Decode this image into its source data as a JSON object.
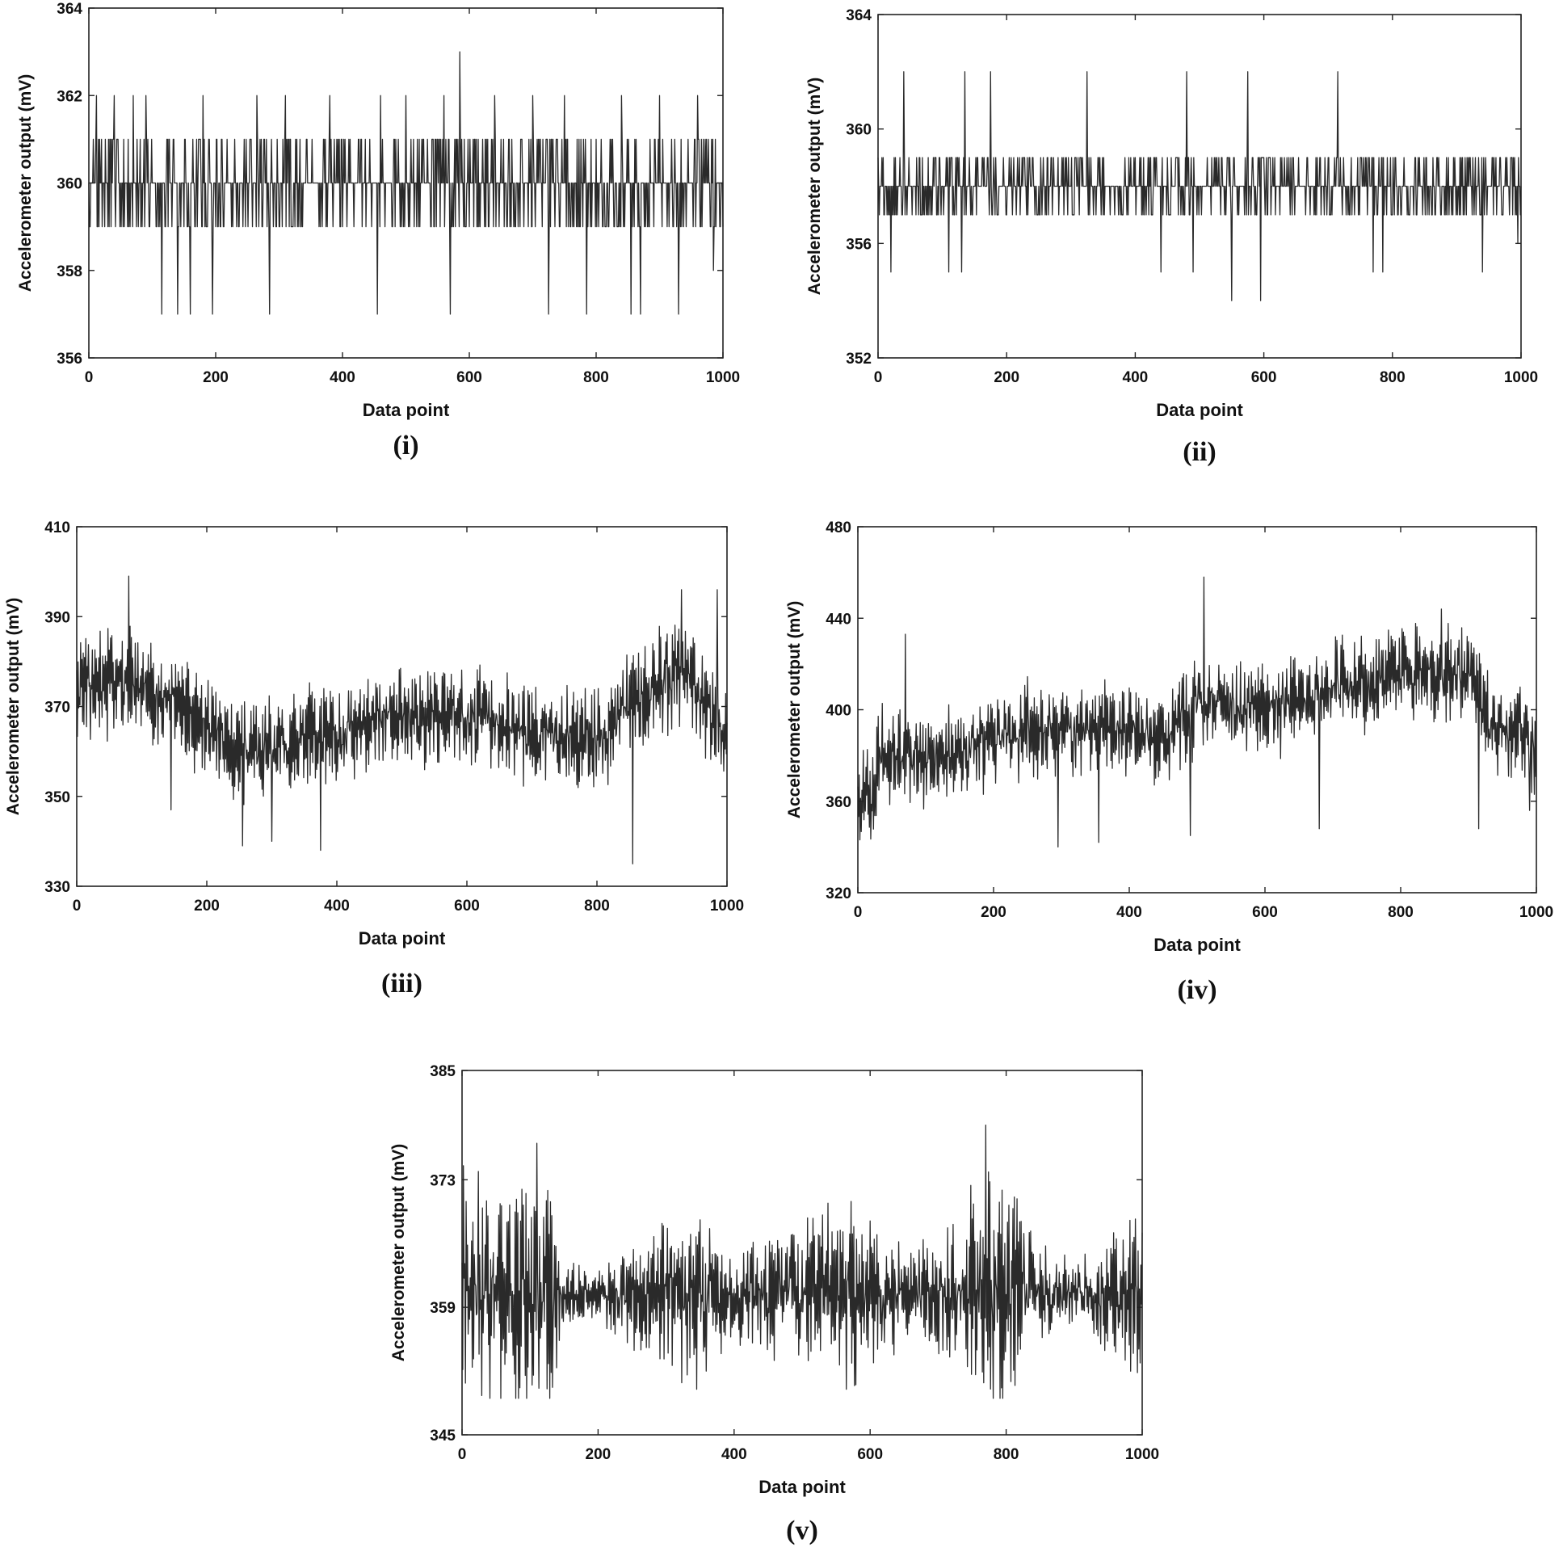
{
  "chart_data": [
    {
      "type": "line",
      "caption": "(i)",
      "xlabel": "Data point",
      "ylabel": "Accelerometer output (mV)",
      "xlim": [
        0,
        1000
      ],
      "ylim": [
        356,
        364
      ],
      "xticks": [
        0,
        200,
        400,
        600,
        800,
        1000
      ],
      "yticks": [
        356,
        358,
        360,
        362,
        364
      ],
      "grid": false,
      "series_profile": {
        "points": 1000,
        "quantized_to_integer_mV": true,
        "baseline": [
          [
            0,
            360.3
          ],
          [
            100,
            360.1
          ],
          [
            300,
            359.8
          ],
          [
            600,
            359.7
          ],
          [
            1000,
            359.5
          ]
        ],
        "typical_range": [
          359,
          361
        ],
        "min": 357,
        "max": 363,
        "spikes": [
          [
            585,
            363
          ],
          [
            12,
            362
          ],
          [
            40,
            362
          ],
          [
            70,
            362
          ],
          [
            90,
            362
          ],
          [
            180,
            362
          ],
          [
            265,
            362
          ],
          [
            310,
            362
          ],
          [
            380,
            362
          ],
          [
            460,
            362
          ],
          [
            500,
            362
          ],
          [
            560,
            362
          ],
          [
            640,
            362
          ],
          [
            700,
            362
          ],
          [
            750,
            362
          ],
          [
            840,
            362
          ],
          [
            900,
            362
          ],
          [
            960,
            362
          ],
          [
            115,
            357
          ],
          [
            140,
            357
          ],
          [
            160,
            357
          ],
          [
            195,
            357
          ],
          [
            285,
            357
          ],
          [
            455,
            357
          ],
          [
            570,
            357
          ],
          [
            725,
            357
          ],
          [
            785,
            357
          ],
          [
            855,
            357
          ],
          [
            870,
            357
          ],
          [
            930,
            357
          ],
          [
            985,
            358
          ]
        ]
      }
    },
    {
      "type": "line",
      "caption": "(ii)",
      "xlabel": "Data point",
      "ylabel": "Accelerometer output (mV)",
      "xlim": [
        0,
        1000
      ],
      "ylim": [
        352,
        364
      ],
      "xticks": [
        0,
        200,
        400,
        600,
        800,
        1000
      ],
      "yticks": [
        352,
        356,
        360,
        364
      ],
      "grid": false,
      "series_profile": {
        "points": 1000,
        "quantized_to_integer_mV": true,
        "baseline": [
          [
            0,
            358.2
          ],
          [
            500,
            358.0
          ],
          [
            1000,
            358.0
          ]
        ],
        "typical_range": [
          357,
          359
        ],
        "min": 354,
        "max": 362,
        "spikes": [
          [
            40,
            362
          ],
          [
            135,
            362
          ],
          [
            175,
            362
          ],
          [
            325,
            362
          ],
          [
            480,
            362
          ],
          [
            575,
            362
          ],
          [
            715,
            362
          ],
          [
            20,
            355
          ],
          [
            110,
            355
          ],
          [
            130,
            355
          ],
          [
            440,
            355
          ],
          [
            490,
            355
          ],
          [
            550,
            354
          ],
          [
            595,
            354
          ],
          [
            770,
            355
          ],
          [
            785,
            355
          ],
          [
            940,
            355
          ],
          [
            995,
            356
          ]
        ]
      }
    },
    {
      "type": "line",
      "caption": "(iii)",
      "xlabel": "Data point",
      "ylabel": "Accelerometer output (mV)",
      "xlim": [
        0,
        1000
      ],
      "ylim": [
        330,
        410
      ],
      "xticks": [
        0,
        200,
        400,
        600,
        800,
        1000
      ],
      "yticks": [
        330,
        350,
        370,
        390,
        410
      ],
      "grid": false,
      "series_profile": {
        "points": 1000,
        "quantized_to_integer_mV": false,
        "baseline": [
          [
            0,
            374
          ],
          [
            80,
            376
          ],
          [
            150,
            371
          ],
          [
            250,
            360
          ],
          [
            320,
            362
          ],
          [
            400,
            364
          ],
          [
            500,
            368
          ],
          [
            600,
            368
          ],
          [
            700,
            364
          ],
          [
            800,
            362
          ],
          [
            880,
            374
          ],
          [
            940,
            378
          ],
          [
            1000,
            362
          ]
        ],
        "amplitude": 11,
        "min": 335,
        "max": 399,
        "spikes": [
          [
            80,
            399
          ],
          [
            930,
            396
          ],
          [
            985,
            396
          ],
          [
            255,
            339
          ],
          [
            300,
            340
          ],
          [
            375,
            338
          ],
          [
            855,
            335
          ],
          [
            145,
            347
          ]
        ]
      }
    },
    {
      "type": "line",
      "caption": "(iv)",
      "xlabel": "Data point",
      "ylabel": "Accelerometer output (mV)",
      "xlim": [
        0,
        1000
      ],
      "ylim": [
        320,
        480
      ],
      "xticks": [
        0,
        200,
        400,
        600,
        800,
        1000
      ],
      "yticks": [
        320,
        360,
        400,
        440,
        480
      ],
      "grid": false,
      "series_profile": {
        "points": 1000,
        "quantized_to_integer_mV": false,
        "baseline": [
          [
            0,
            362
          ],
          [
            25,
            362
          ],
          [
            30,
            380
          ],
          [
            100,
            378
          ],
          [
            250,
            392
          ],
          [
            400,
            390
          ],
          [
            450,
            388
          ],
          [
            500,
            403
          ],
          [
            600,
            400
          ],
          [
            700,
            410
          ],
          [
            800,
            414
          ],
          [
            900,
            418
          ],
          [
            930,
            392
          ],
          [
            1000,
            385
          ]
        ],
        "amplitude": 20,
        "min": 340,
        "max": 458,
        "spikes": [
          [
            510,
            458
          ],
          [
            70,
            433
          ],
          [
            860,
            444
          ],
          [
            295,
            340
          ],
          [
            355,
            342
          ],
          [
            490,
            345
          ],
          [
            680,
            348
          ],
          [
            915,
            348
          ],
          [
            990,
            356
          ]
        ]
      }
    },
    {
      "type": "line",
      "caption": "(v)",
      "xlabel": "Data point",
      "ylabel": "Accelerometer output (mV)",
      "xlim": [
        0,
        1000
      ],
      "ylim": [
        345,
        385
      ],
      "xticks": [
        0,
        200,
        400,
        600,
        800,
        1000
      ],
      "yticks": [
        345,
        359,
        373,
        385
      ],
      "grid": false,
      "series_profile": {
        "points": 1000,
        "quantized_to_integer_mV": false,
        "baseline": [
          [
            0,
            360.5
          ],
          [
            500,
            360.5
          ],
          [
            1000,
            360.5
          ]
        ],
        "amplitude_envelope": [
          [
            0,
            13
          ],
          [
            130,
            12
          ],
          [
            150,
            3
          ],
          [
            200,
            3
          ],
          [
            260,
            6
          ],
          [
            330,
            9
          ],
          [
            400,
            5
          ],
          [
            480,
            7
          ],
          [
            560,
            10
          ],
          [
            650,
            5
          ],
          [
            720,
            8
          ],
          [
            780,
            13
          ],
          [
            850,
            7
          ],
          [
            900,
            3
          ],
          [
            950,
            6
          ],
          [
            1000,
            11
          ]
        ],
        "min": 349,
        "max": 379,
        "spikes": [
          [
            110,
            377
          ],
          [
            95,
            349
          ],
          [
            770,
            379
          ],
          [
            565,
            350
          ],
          [
            345,
            350
          ]
        ]
      }
    }
  ]
}
